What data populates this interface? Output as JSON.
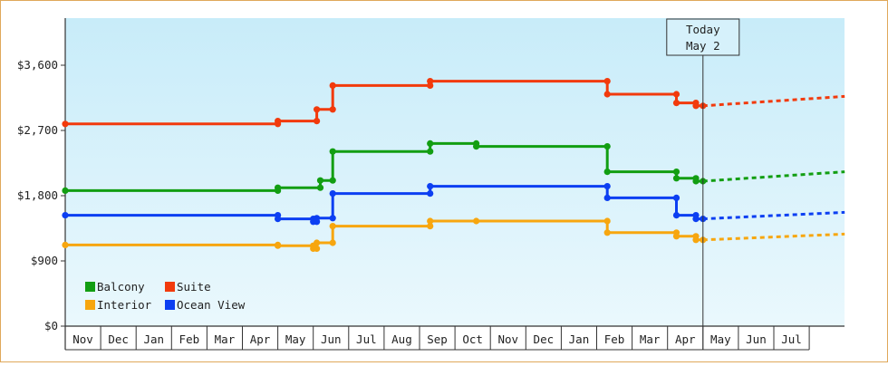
{
  "chart_data": {
    "type": "line",
    "y_ticks": [
      "$0",
      "$900",
      "$1,800",
      "$2,700",
      "$3,600"
    ],
    "y_tick_values": [
      0,
      900,
      1800,
      2700,
      3600
    ],
    "ylim": [
      0,
      4250
    ],
    "x_categories": [
      "Nov",
      "Dec",
      "Jan",
      "Feb",
      "Mar",
      "Apr",
      "May",
      "Jun",
      "Jul",
      "Aug",
      "Sep",
      "Oct",
      "Nov",
      "Dec",
      "Jan",
      "Feb",
      "Mar",
      "Apr",
      "May",
      "Jun",
      "Jul"
    ],
    "grid": false,
    "legend_position": "bottom-left",
    "today_marker": {
      "line1": "Today",
      "line2": "May 2",
      "month_pos": 18.0
    },
    "series": [
      {
        "name": "Balcony",
        "color": "#129e12",
        "points": [
          [
            0.0,
            1870
          ],
          [
            6.0,
            1870
          ],
          [
            6.0,
            1910
          ],
          [
            7.2,
            1910
          ],
          [
            7.2,
            2010
          ],
          [
            7.55,
            2010
          ],
          [
            7.55,
            2410
          ],
          [
            10.3,
            2410
          ],
          [
            10.3,
            2520
          ],
          [
            11.6,
            2520
          ],
          [
            11.6,
            2480
          ],
          [
            15.3,
            2480
          ],
          [
            15.3,
            2130
          ],
          [
            17.25,
            2130
          ],
          [
            17.25,
            2040
          ],
          [
            17.8,
            2040
          ],
          [
            17.8,
            2000
          ],
          [
            18.0,
            2000
          ]
        ],
        "markers": [
          [
            0.0,
            1870
          ],
          [
            6.0,
            1870
          ],
          [
            6.0,
            1910
          ],
          [
            7.2,
            1910
          ],
          [
            7.2,
            2010
          ],
          [
            7.55,
            2010
          ],
          [
            7.55,
            2410
          ],
          [
            10.3,
            2410
          ],
          [
            10.3,
            2520
          ],
          [
            11.6,
            2520
          ],
          [
            11.6,
            2480
          ],
          [
            15.3,
            2480
          ],
          [
            15.3,
            2130
          ],
          [
            17.25,
            2130
          ],
          [
            17.25,
            2040
          ],
          [
            17.8,
            2040
          ],
          [
            17.8,
            2000
          ],
          [
            18.0,
            2000
          ]
        ],
        "projection": [
          [
            18.0,
            2000
          ],
          [
            22.0,
            2130
          ]
        ]
      },
      {
        "name": "Suite",
        "color": "#f23a0c",
        "points": [
          [
            0.0,
            2790
          ],
          [
            6.0,
            2790
          ],
          [
            6.0,
            2830
          ],
          [
            7.1,
            2830
          ],
          [
            7.1,
            2990
          ],
          [
            7.55,
            2990
          ],
          [
            7.55,
            3320
          ],
          [
            10.3,
            3320
          ],
          [
            10.3,
            3380
          ],
          [
            15.3,
            3380
          ],
          [
            15.3,
            3200
          ],
          [
            17.25,
            3200
          ],
          [
            17.25,
            3080
          ],
          [
            17.8,
            3080
          ],
          [
            17.8,
            3040
          ],
          [
            18.0,
            3040
          ]
        ],
        "markers": [
          [
            0.0,
            2790
          ],
          [
            6.0,
            2790
          ],
          [
            6.0,
            2830
          ],
          [
            7.1,
            2830
          ],
          [
            7.1,
            2990
          ],
          [
            7.55,
            2990
          ],
          [
            7.55,
            3320
          ],
          [
            10.3,
            3320
          ],
          [
            10.3,
            3380
          ],
          [
            15.3,
            3380
          ],
          [
            15.3,
            3200
          ],
          [
            17.25,
            3200
          ],
          [
            17.25,
            3080
          ],
          [
            17.8,
            3080
          ],
          [
            17.8,
            3040
          ],
          [
            18.0,
            3040
          ]
        ],
        "projection": [
          [
            18.0,
            3040
          ],
          [
            22.0,
            3170
          ]
        ]
      },
      {
        "name": "Interior",
        "color": "#f7a60f",
        "points": [
          [
            0.0,
            1120
          ],
          [
            6.0,
            1120
          ],
          [
            6.0,
            1110
          ],
          [
            7.0,
            1110
          ],
          [
            7.0,
            1070
          ],
          [
            7.1,
            1070
          ],
          [
            7.1,
            1150
          ],
          [
            7.55,
            1150
          ],
          [
            7.55,
            1380
          ],
          [
            10.3,
            1380
          ],
          [
            10.3,
            1450
          ],
          [
            15.3,
            1450
          ],
          [
            15.3,
            1290
          ],
          [
            17.25,
            1290
          ],
          [
            17.25,
            1240
          ],
          [
            17.8,
            1240
          ],
          [
            17.8,
            1190
          ],
          [
            18.0,
            1190
          ]
        ],
        "markers": [
          [
            0.0,
            1120
          ],
          [
            6.0,
            1120
          ],
          [
            6.0,
            1110
          ],
          [
            7.0,
            1110
          ],
          [
            7.0,
            1070
          ],
          [
            7.1,
            1070
          ],
          [
            7.1,
            1150
          ],
          [
            7.55,
            1150
          ],
          [
            7.55,
            1380
          ],
          [
            10.3,
            1380
          ],
          [
            10.3,
            1450
          ],
          [
            11.6,
            1450
          ],
          [
            15.3,
            1450
          ],
          [
            15.3,
            1290
          ],
          [
            17.25,
            1290
          ],
          [
            17.25,
            1240
          ],
          [
            17.8,
            1240
          ],
          [
            17.8,
            1190
          ],
          [
            18.0,
            1190
          ]
        ],
        "projection": [
          [
            18.0,
            1190
          ],
          [
            22.0,
            1270
          ]
        ]
      },
      {
        "name": "Ocean View",
        "color": "#0c3ff2",
        "points": [
          [
            0.0,
            1530
          ],
          [
            6.0,
            1530
          ],
          [
            6.0,
            1480
          ],
          [
            7.0,
            1480
          ],
          [
            7.0,
            1440
          ],
          [
            7.1,
            1440
          ],
          [
            7.1,
            1490
          ],
          [
            7.55,
            1490
          ],
          [
            7.55,
            1830
          ],
          [
            10.3,
            1830
          ],
          [
            10.3,
            1930
          ],
          [
            15.3,
            1930
          ],
          [
            15.3,
            1770
          ],
          [
            17.25,
            1770
          ],
          [
            17.25,
            1530
          ],
          [
            17.8,
            1530
          ],
          [
            17.8,
            1480
          ],
          [
            18.0,
            1480
          ]
        ],
        "markers": [
          [
            0.0,
            1530
          ],
          [
            6.0,
            1530
          ],
          [
            6.0,
            1480
          ],
          [
            7.0,
            1480
          ],
          [
            7.0,
            1440
          ],
          [
            7.1,
            1440
          ],
          [
            7.1,
            1490
          ],
          [
            7.55,
            1490
          ],
          [
            7.55,
            1830
          ],
          [
            10.3,
            1830
          ],
          [
            10.3,
            1930
          ],
          [
            15.3,
            1930
          ],
          [
            15.3,
            1770
          ],
          [
            17.25,
            1770
          ],
          [
            17.25,
            1530
          ],
          [
            17.8,
            1530
          ],
          [
            17.8,
            1480
          ],
          [
            18.0,
            1480
          ]
        ],
        "projection": [
          [
            18.0,
            1480
          ],
          [
            22.0,
            1570
          ]
        ]
      }
    ]
  },
  "legend": [
    {
      "name": "Balcony",
      "color": "#129e12"
    },
    {
      "name": "Suite",
      "color": "#f23a0c"
    },
    {
      "name": "Interior",
      "color": "#f7a60f"
    },
    {
      "name": "Ocean View",
      "color": "#0c3ff2"
    }
  ]
}
